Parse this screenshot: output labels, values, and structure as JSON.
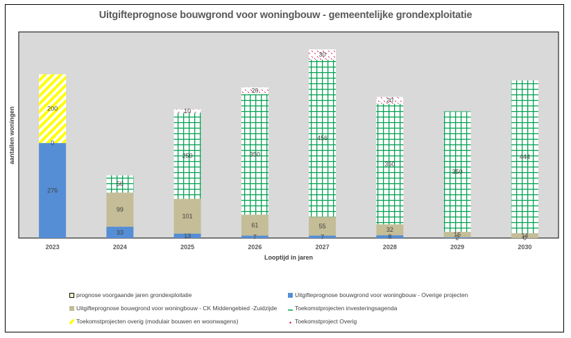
{
  "chart_data": {
    "type": "bar",
    "stacked": true,
    "title": "Uitgifteprognose bouwgrond voor woningbouw - gemeentelijke grondexploitatie",
    "xlabel": "Looptijd in jaren",
    "ylabel": "aantallen woningen",
    "ylim": [
      0,
      560
    ],
    "grid": false,
    "legend_position": "bottom",
    "categories": [
      "2023",
      "2024",
      "2025",
      "2026",
      "2027",
      "2028",
      "2029",
      "2030"
    ],
    "series": [
      {
        "name": "Uitgifteprognose bouwgrond voor woningbouw - Overige projecten",
        "key": "overige",
        "color": "#558ED5",
        "pattern": "solid",
        "values": [
          276,
          33,
          13,
          7,
          7,
          8,
          2,
          0
        ]
      },
      {
        "name": "Uitgifteprognose bouwgrond voor woningbouw - CK Middengebied -Zuidzijde",
        "key": "ck",
        "color": "#C4BD97",
        "pattern": "solid",
        "values": [
          0,
          99,
          101,
          61,
          55,
          32,
          16,
          14
        ]
      },
      {
        "name": "Toekomstprojecten overig (modulair bouwen en woonwagens)",
        "key": "modulair",
        "color": "#FFFF00",
        "pattern": "diagonal-stripes",
        "values": [
          200,
          null,
          null,
          null,
          null,
          null,
          null,
          null
        ]
      },
      {
        "name": "Toekomstprojecten investeringsagenda",
        "key": "invest",
        "color": "#00A050",
        "pattern": "grid",
        "values": [
          null,
          50,
          250,
          350,
          456,
          350,
          350,
          444
        ]
      },
      {
        "name": "Toekomstproject Overig",
        "key": "overig",
        "color": "#E0105A",
        "pattern": "dotted",
        "values": [
          null,
          null,
          10,
          20,
          30,
          20,
          null,
          null
        ]
      },
      {
        "name": "prognose voorgaande jaren grondexploitatie",
        "key": "voorgaande",
        "color": "#FFFFCC",
        "pattern": "outlined",
        "values": [
          null,
          null,
          null,
          null,
          null,
          null,
          null,
          null
        ]
      }
    ],
    "legend_order": [
      "prognose voorgaande jaren grondexploitatie",
      "Uitgifteprognose bouwgrond voor woningbouw - Overige projecten",
      "Uitgifteprognose bouwgrond voor woningbouw - CK Middengebied -Zuidzijde",
      "Toekomstprojecten investeringsagenda",
      "Toekomstprojecten overig (modulair bouwen en woonwagens)",
      "Toekomstproject Overig"
    ]
  },
  "colors": {
    "plot_background": "#D9D9D9",
    "text": "#404040"
  }
}
